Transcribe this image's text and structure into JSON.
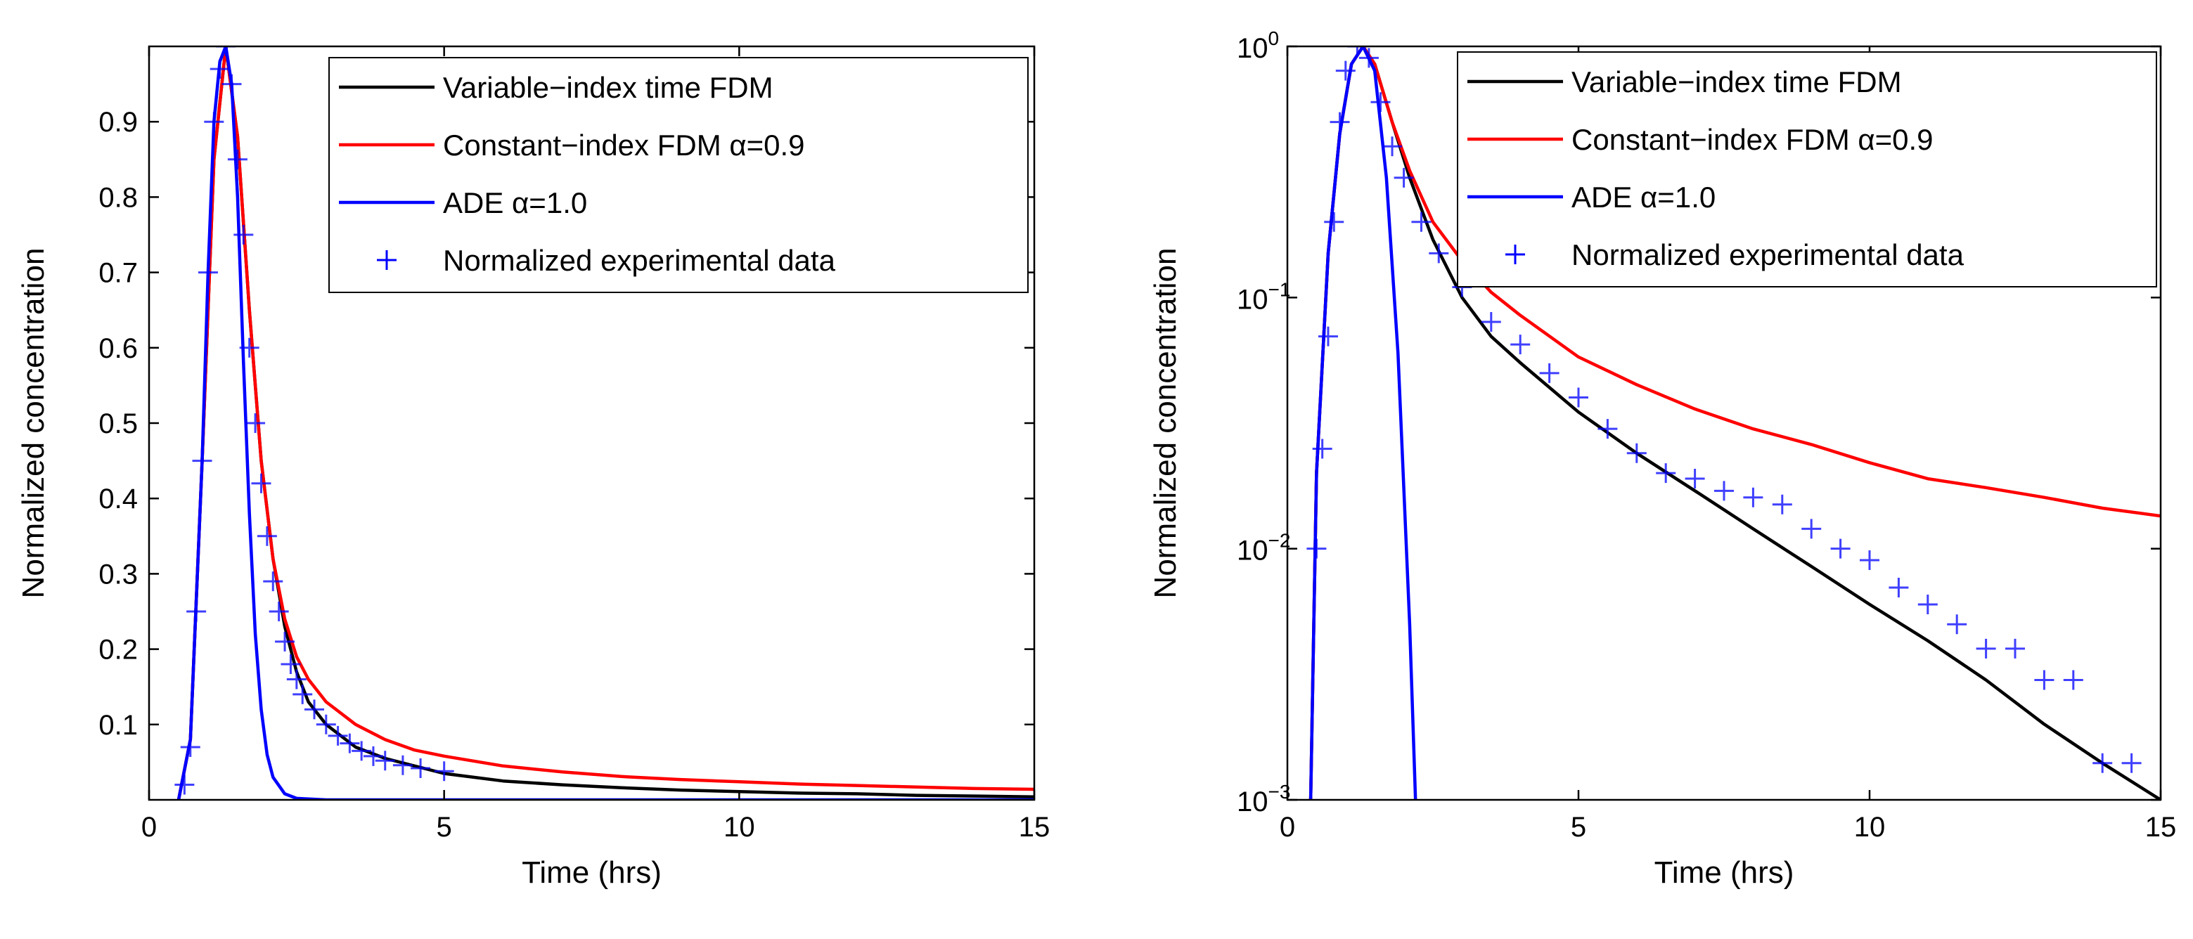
{
  "chart_data": [
    {
      "type": "line",
      "yscale": "linear",
      "title": "",
      "xlabel": "Time (hrs)",
      "ylabel": "Normalized concentration",
      "xlim": [
        0,
        15
      ],
      "ylim": [
        0,
        1.0
      ],
      "xticks": [
        0,
        5,
        10,
        15
      ],
      "xticklabels": [
        "0",
        "5",
        "10",
        "15"
      ],
      "yticks": [
        0.1,
        0.2,
        0.3,
        0.4,
        0.5,
        0.6,
        0.7,
        0.8,
        0.9
      ],
      "yticklabels": [
        "0.1",
        "0.2",
        "0.3",
        "0.4",
        "0.5",
        "0.6",
        "0.7",
        "0.8",
        "0.9"
      ],
      "grid": false,
      "legend_position": "top-right",
      "series": [
        {
          "name": "Variable−index time FDM",
          "color": "#000000",
          "x": [
            0.5,
            0.7,
            0.9,
            1.1,
            1.3,
            1.5,
            1.7,
            1.9,
            2.1,
            2.3,
            2.5,
            2.7,
            3.0,
            3.5,
            4.0,
            4.5,
            5.0,
            6,
            7,
            8,
            9,
            10,
            11,
            12,
            13,
            14,
            15
          ],
          "y": [
            0,
            0.08,
            0.45,
            0.85,
            1.0,
            0.88,
            0.65,
            0.45,
            0.32,
            0.23,
            0.17,
            0.13,
            0.1,
            0.07,
            0.055,
            0.045,
            0.035,
            0.025,
            0.02,
            0.016,
            0.013,
            0.011,
            0.009,
            0.008,
            0.006,
            0.005,
            0.004
          ]
        },
        {
          "name": "Constant−index FDM α=0.9",
          "color": "#ff0000",
          "x": [
            0.5,
            0.7,
            0.9,
            1.1,
            1.3,
            1.5,
            1.7,
            1.9,
            2.1,
            2.3,
            2.5,
            2.7,
            3.0,
            3.5,
            4.0,
            4.5,
            5.0,
            6,
            7,
            8,
            9,
            10,
            11,
            12,
            13,
            14,
            15
          ],
          "y": [
            0,
            0.08,
            0.45,
            0.85,
            1.0,
            0.88,
            0.65,
            0.45,
            0.32,
            0.24,
            0.19,
            0.16,
            0.13,
            0.1,
            0.08,
            0.066,
            0.058,
            0.045,
            0.037,
            0.031,
            0.027,
            0.024,
            0.021,
            0.019,
            0.017,
            0.015,
            0.014
          ]
        },
        {
          "name": "ADE α=1.0",
          "color": "#0000ff",
          "x": [
            0.5,
            0.7,
            0.9,
            1.0,
            1.1,
            1.2,
            1.3,
            1.4,
            1.5,
            1.6,
            1.7,
            1.8,
            1.9,
            2.0,
            2.1,
            2.3,
            2.5,
            3,
            15
          ],
          "y": [
            0,
            0.08,
            0.45,
            0.7,
            0.9,
            0.98,
            1.0,
            0.95,
            0.8,
            0.58,
            0.38,
            0.22,
            0.12,
            0.06,
            0.03,
            0.008,
            0.002,
            0,
            0
          ]
        },
        {
          "name": "Normalized experimental data",
          "color": "#0000ff",
          "marker": "+",
          "x": [
            0.6,
            0.7,
            0.8,
            0.9,
            1.0,
            1.1,
            1.2,
            1.3,
            1.4,
            1.5,
            1.6,
            1.7,
            1.8,
            1.9,
            2.0,
            2.1,
            2.2,
            2.3,
            2.4,
            2.5,
            2.6,
            2.8,
            3.0,
            3.2,
            3.4,
            3.6,
            3.8,
            4.0,
            4.3,
            4.6,
            5.0
          ],
          "y": [
            0.02,
            0.07,
            0.25,
            0.45,
            0.7,
            0.9,
            0.97,
            1.0,
            0.95,
            0.85,
            0.75,
            0.6,
            0.5,
            0.42,
            0.35,
            0.29,
            0.25,
            0.21,
            0.18,
            0.16,
            0.14,
            0.12,
            0.1,
            0.085,
            0.075,
            0.065,
            0.058,
            0.052,
            0.046,
            0.042,
            0.038
          ]
        }
      ]
    },
    {
      "type": "line",
      "yscale": "log",
      "title": "",
      "xlabel": "Time (hrs)",
      "ylabel": "Normalized concentration",
      "xlim": [
        0,
        15
      ],
      "ylim": [
        0.001,
        1
      ],
      "xticks": [
        0,
        5,
        10,
        15
      ],
      "xticklabels": [
        "0",
        "5",
        "10",
        "15"
      ],
      "yticks": [
        0.001,
        0.01,
        0.1,
        1
      ],
      "yticklabels": [
        {
          "base": "10",
          "exp": "−3"
        },
        {
          "base": "10",
          "exp": "−2"
        },
        {
          "base": "10",
          "exp": "−1"
        },
        {
          "base": "10",
          "exp": "0"
        }
      ],
      "grid": false,
      "legend_position": "top-right",
      "series": [
        {
          "name": "Variable−index time FDM",
          "color": "#000000",
          "x": [
            0.4,
            0.5,
            0.7,
            0.9,
            1.1,
            1.3,
            1.5,
            1.8,
            2.1,
            2.5,
            3.0,
            3.5,
            4.0,
            5.0,
            6,
            7,
            8,
            9,
            10,
            11,
            12,
            13,
            14,
            15
          ],
          "y": [
            0.001,
            0.02,
            0.15,
            0.45,
            0.85,
            1.0,
            0.85,
            0.5,
            0.3,
            0.17,
            0.1,
            0.07,
            0.055,
            0.035,
            0.024,
            0.017,
            0.012,
            0.0085,
            0.006,
            0.0043,
            0.003,
            0.002,
            0.0014,
            0.001
          ]
        },
        {
          "name": "Constant−index FDM α=0.9",
          "color": "#ff0000",
          "x": [
            0.4,
            0.5,
            0.7,
            0.9,
            1.1,
            1.3,
            1.5,
            1.8,
            2.1,
            2.5,
            3.0,
            3.5,
            4.0,
            5.0,
            6,
            7,
            8,
            9,
            10,
            11,
            12,
            13,
            14,
            15
          ],
          "y": [
            0.001,
            0.02,
            0.15,
            0.45,
            0.85,
            1.0,
            0.85,
            0.5,
            0.32,
            0.2,
            0.14,
            0.105,
            0.085,
            0.058,
            0.045,
            0.036,
            0.03,
            0.026,
            0.022,
            0.019,
            0.0175,
            0.016,
            0.0145,
            0.0135
          ]
        },
        {
          "name": "ADE α=1.0",
          "color": "#0000ff",
          "x": [
            0.4,
            0.5,
            0.7,
            0.9,
            1.1,
            1.3,
            1.5,
            1.7,
            1.9,
            2.1,
            2.2
          ],
          "y": [
            0.001,
            0.02,
            0.15,
            0.45,
            0.85,
            1.0,
            0.8,
            0.3,
            0.06,
            0.005,
            0.001
          ]
        },
        {
          "name": "Normalized experimental data",
          "color": "#0000ff",
          "marker": "+",
          "x": [
            0.5,
            0.6,
            0.7,
            0.8,
            0.9,
            1.0,
            1.2,
            1.4,
            1.6,
            1.8,
            2.0,
            2.3,
            2.6,
            3.0,
            3.5,
            4.0,
            4.5,
            5.0,
            5.5,
            6,
            6.5,
            7,
            7.5,
            8,
            8.5,
            9,
            9.5,
            10,
            10.5,
            11,
            11.5,
            12,
            12.5,
            13,
            13.5,
            14,
            14.5
          ],
          "y": [
            0.01,
            0.025,
            0.07,
            0.2,
            0.5,
            0.8,
            1.0,
            0.9,
            0.6,
            0.4,
            0.3,
            0.2,
            0.15,
            0.11,
            0.08,
            0.065,
            0.05,
            0.04,
            0.03,
            0.024,
            0.02,
            0.019,
            0.017,
            0.016,
            0.015,
            0.012,
            0.01,
            0.009,
            0.007,
            0.006,
            0.005,
            0.004,
            0.004,
            0.003,
            0.003,
            0.0014,
            0.0014
          ]
        }
      ]
    }
  ]
}
